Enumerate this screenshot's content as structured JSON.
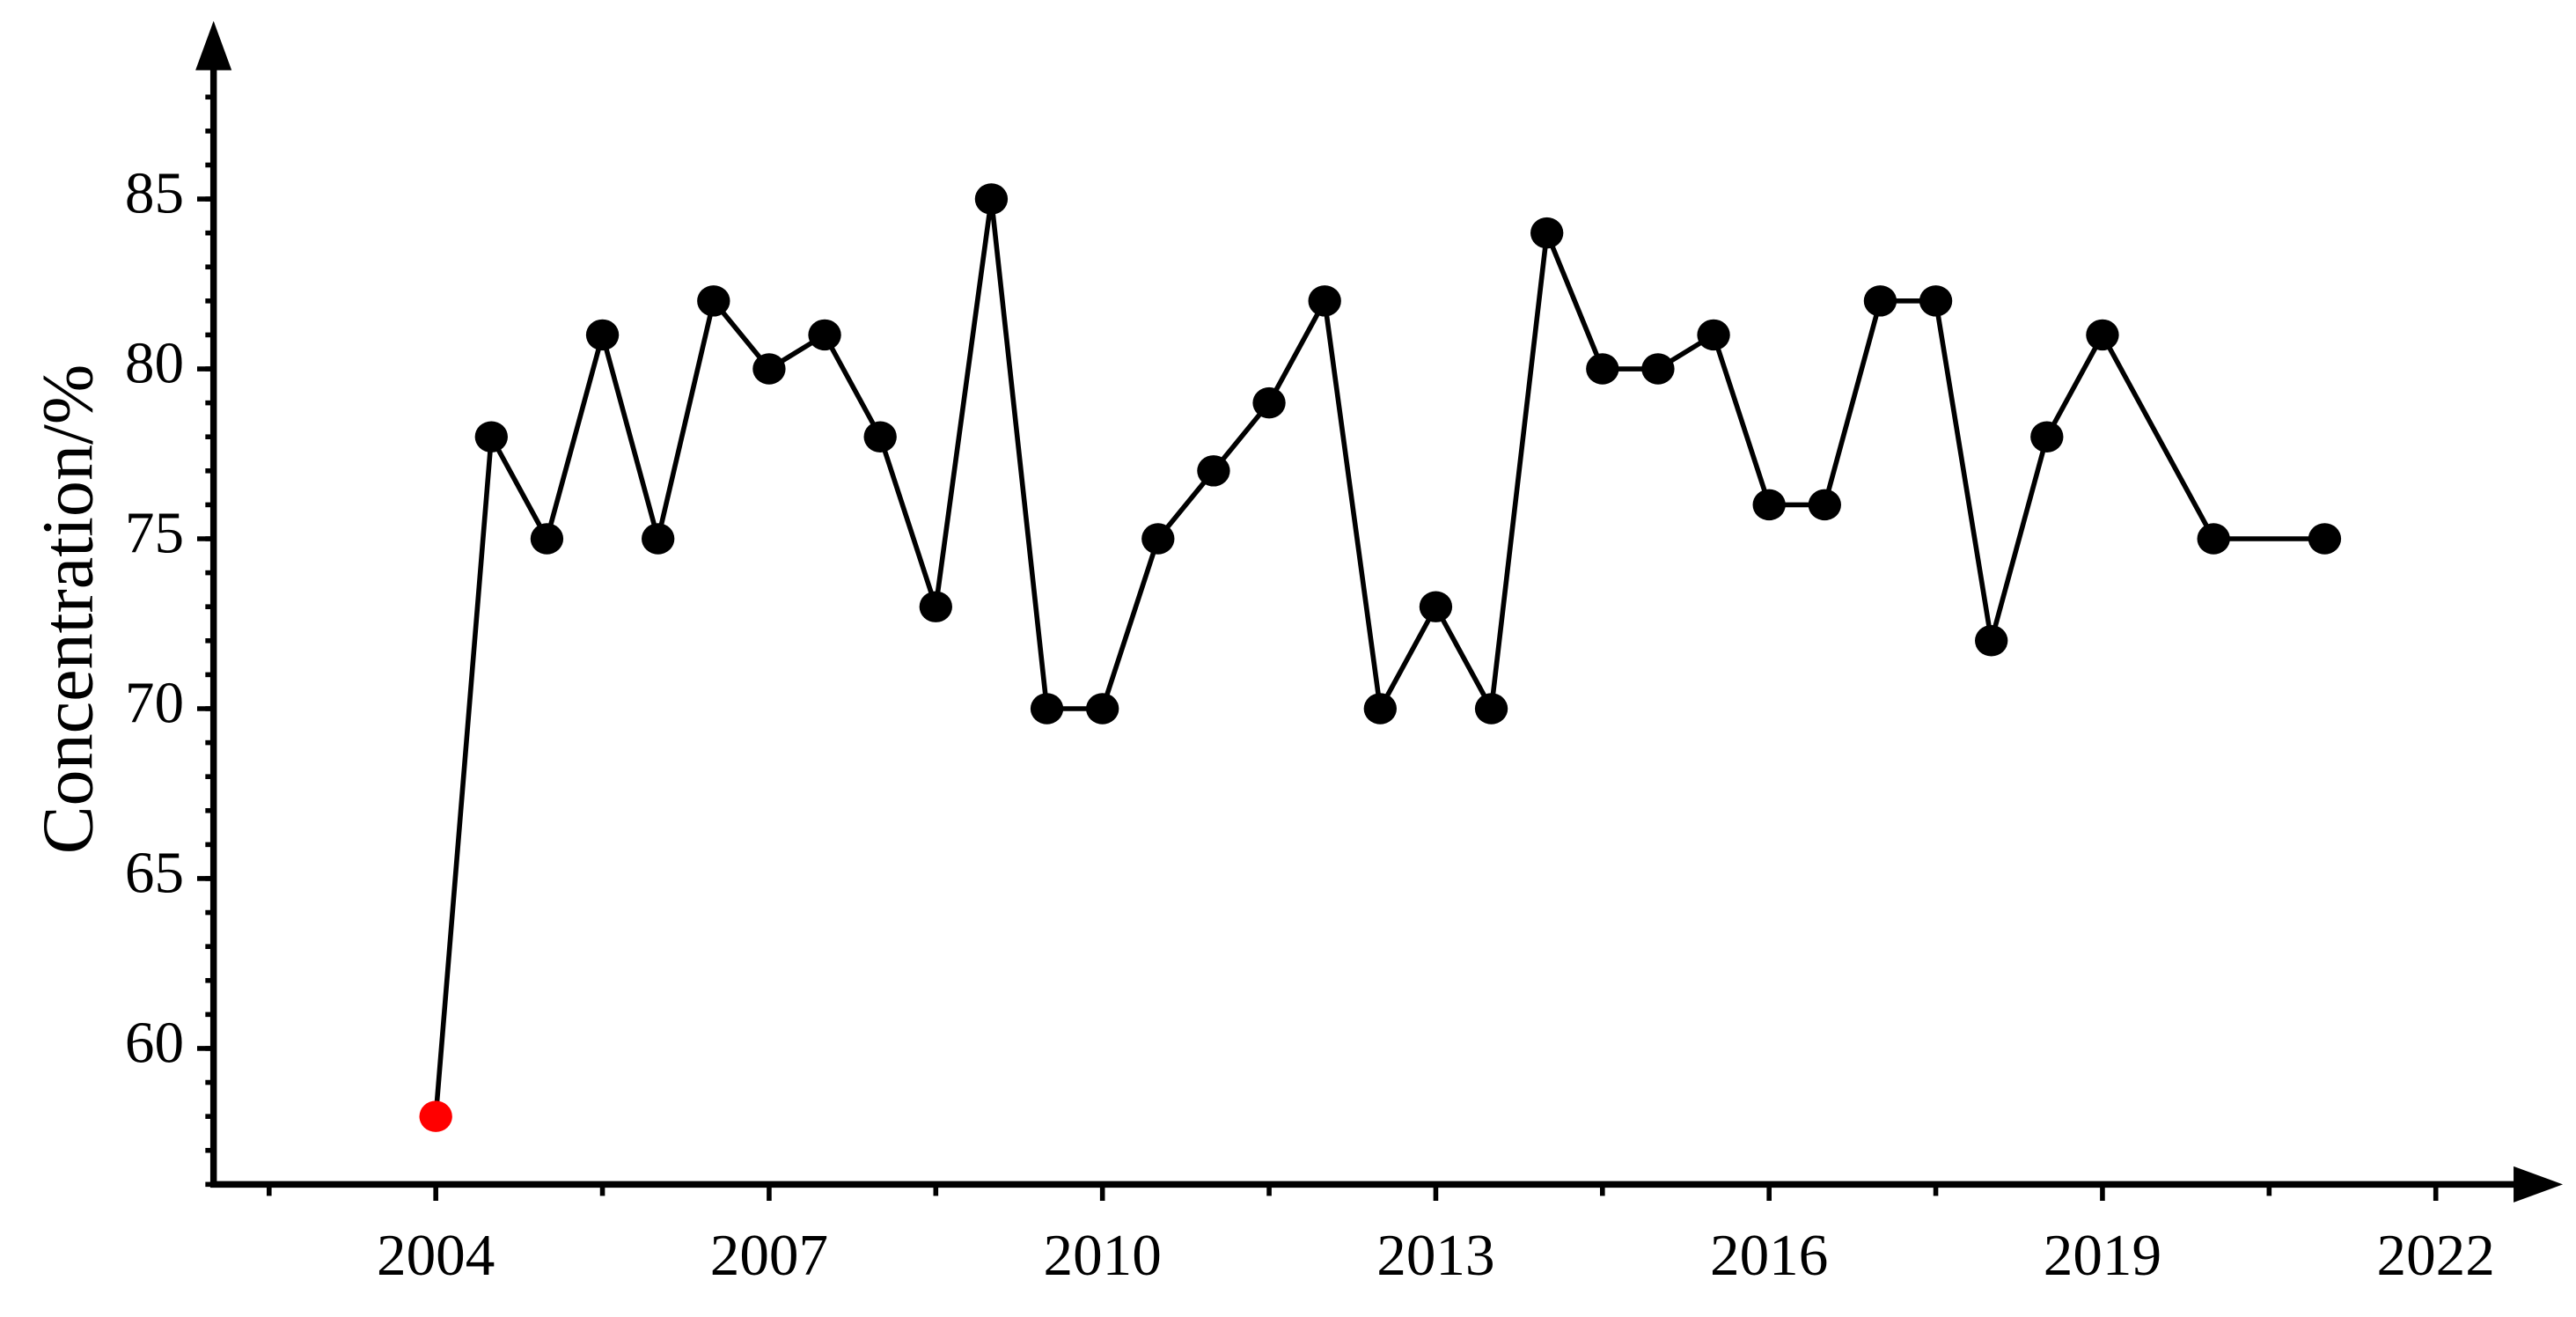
{
  "chart_data": {
    "type": "line",
    "y_label": "Concentration/%",
    "x": [
      2004,
      2004.5,
      2005,
      2005.5,
      2006,
      2006.5,
      2007,
      2007.5,
      2008,
      2008.5,
      2009,
      2009.5,
      2010,
      2010.5,
      2011,
      2011.5,
      2012,
      2012.5,
      2013,
      2013.5,
      2014,
      2014.5,
      2015,
      2015.5,
      2016,
      2016.5,
      2017,
      2017.5,
      2018,
      2018.5,
      2019,
      2020,
      2021
    ],
    "series": [
      {
        "color": "#000000",
        "values": [
          58,
          78,
          75,
          81,
          75,
          82,
          80,
          81,
          78,
          73,
          85,
          70,
          70,
          75,
          77,
          79,
          82,
          70,
          73,
          70,
          84,
          80,
          80,
          81,
          76,
          76,
          82,
          82,
          72,
          78,
          81,
          75,
          75
        ],
        "point_colors": [
          "#ff0000",
          "#000000",
          "#000000",
          "#000000",
          "#000000",
          "#000000",
          "#000000",
          "#000000",
          "#000000",
          "#000000",
          "#000000",
          "#000000",
          "#000000",
          "#000000",
          "#000000",
          "#000000",
          "#000000",
          "#000000",
          "#000000",
          "#000000",
          "#000000",
          "#000000",
          "#000000",
          "#000000",
          "#000000",
          "#000000",
          "#000000",
          "#000000",
          "#000000",
          "#000000",
          "#000000",
          "#000000",
          "#000000"
        ]
      }
    ],
    "xlim": [
      2002,
      2022.7
    ],
    "xticks": [
      2004,
      2007,
      2010,
      2013,
      2016,
      2019,
      2022
    ],
    "ylim": [
      56,
      90
    ],
    "yticks": [
      60,
      65,
      70,
      75,
      80,
      85
    ]
  }
}
